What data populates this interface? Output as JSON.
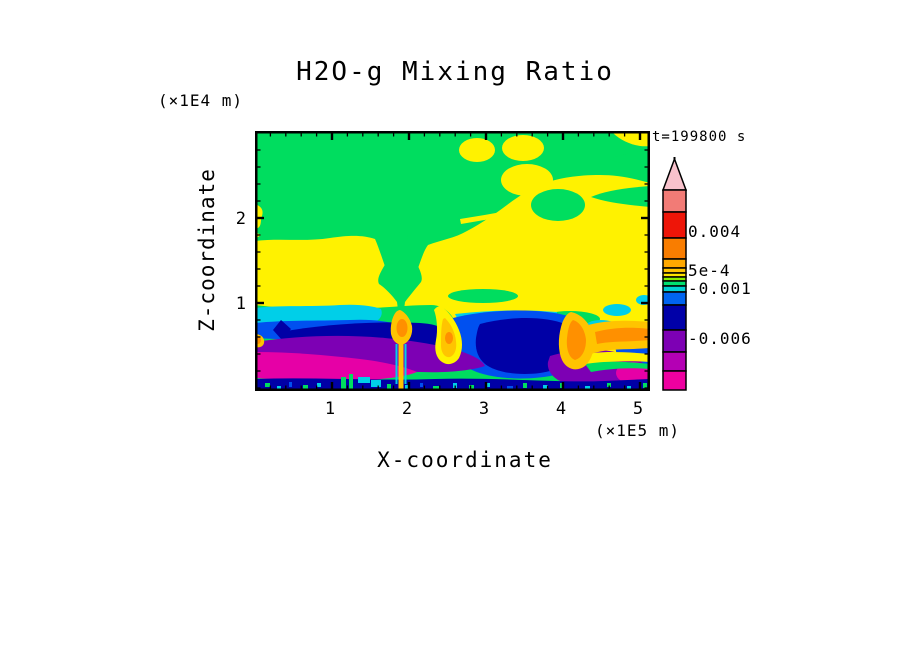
{
  "title": "H2O-g Mixing Ratio",
  "time_label": "t=199800 s",
  "axes": {
    "x": {
      "label": "X-coordinate",
      "units": "(×1E5 m)",
      "tick_labels": [
        "1",
        "2",
        "3",
        "4",
        "5"
      ]
    },
    "z": {
      "label": "Z-coordinate",
      "units": "(×1E4 m)",
      "tick_labels": [
        "2",
        "1"
      ]
    }
  },
  "colorbar": {
    "labels": [
      "0.004",
      "5e-4",
      "-0.001",
      "-0.006"
    ]
  },
  "chart_data": {
    "type": "heatmap",
    "title": "H2O-g Mixing Ratio",
    "annotation": "t=199800 s",
    "xlabel": "X-coordinate",
    "x_units": "(×1E5 m)",
    "x_ticks": [
      1,
      2,
      3,
      4,
      5
    ],
    "x_range": [
      0,
      5.1
    ],
    "ylabel": "Z-coordinate",
    "y_units": "(×1E4 m)",
    "y_ticks": [
      1,
      2
    ],
    "y_range": [
      0,
      3.1
    ],
    "colorbar_labels": [
      {
        "value": "0.004",
        "position": "red/orange boundary"
      },
      {
        "value": "5e-4",
        "position": "gold thin bands"
      },
      {
        "value": "-0.001",
        "position": "cyan/blue thin bands"
      },
      {
        "value": "-0.006",
        "position": "purple band"
      }
    ],
    "palette_top_to_bottom": [
      "#F8C2CC",
      "#F27B76",
      "#EE1508",
      "#F97D00",
      "#FFA800",
      "#FFC400",
      "#FFE400",
      "#8CF000",
      "#00E070",
      "#00D2D2",
      "#0064F0",
      "#0000A8",
      "#7D00B4",
      "#B400B4",
      "#EE00A0"
    ],
    "colorbar_has_arrow_top": true,
    "field_regions": [
      {
        "color": "#00DD5F",
        "desc": "green background over upper half, z≈1.3–3.1"
      },
      {
        "color": "#FFF200",
        "desc": "yellow band across z≈0.9–1.3 plus marbled upper-right quadrant and streaks near right edge"
      },
      {
        "color": "#00CFE8",
        "desc": "thin cyan layer under yellow band, left half z≈0.8"
      },
      {
        "color": "#0050F0",
        "desc": "blue layer z≈0.6–0.8"
      },
      {
        "color": "#0000A6",
        "desc": "thick navy layer z≈0.35–0.75 and speckled bottom strip"
      },
      {
        "color": "#7D00B4",
        "desc": "purple layer z≈0.2–0.5 left half and bottom-right mass"
      },
      {
        "color": "#E600A6",
        "desc": "magenta lowest layer z≈0.05–0.4 left and blob near x≈4.8"
      },
      {
        "color": "#FF9000",
        "desc": "orange/gold rising plumes at x≈1.9, 2.5, 4.1 and horizontal band near right edge z≈0.5"
      }
    ]
  }
}
